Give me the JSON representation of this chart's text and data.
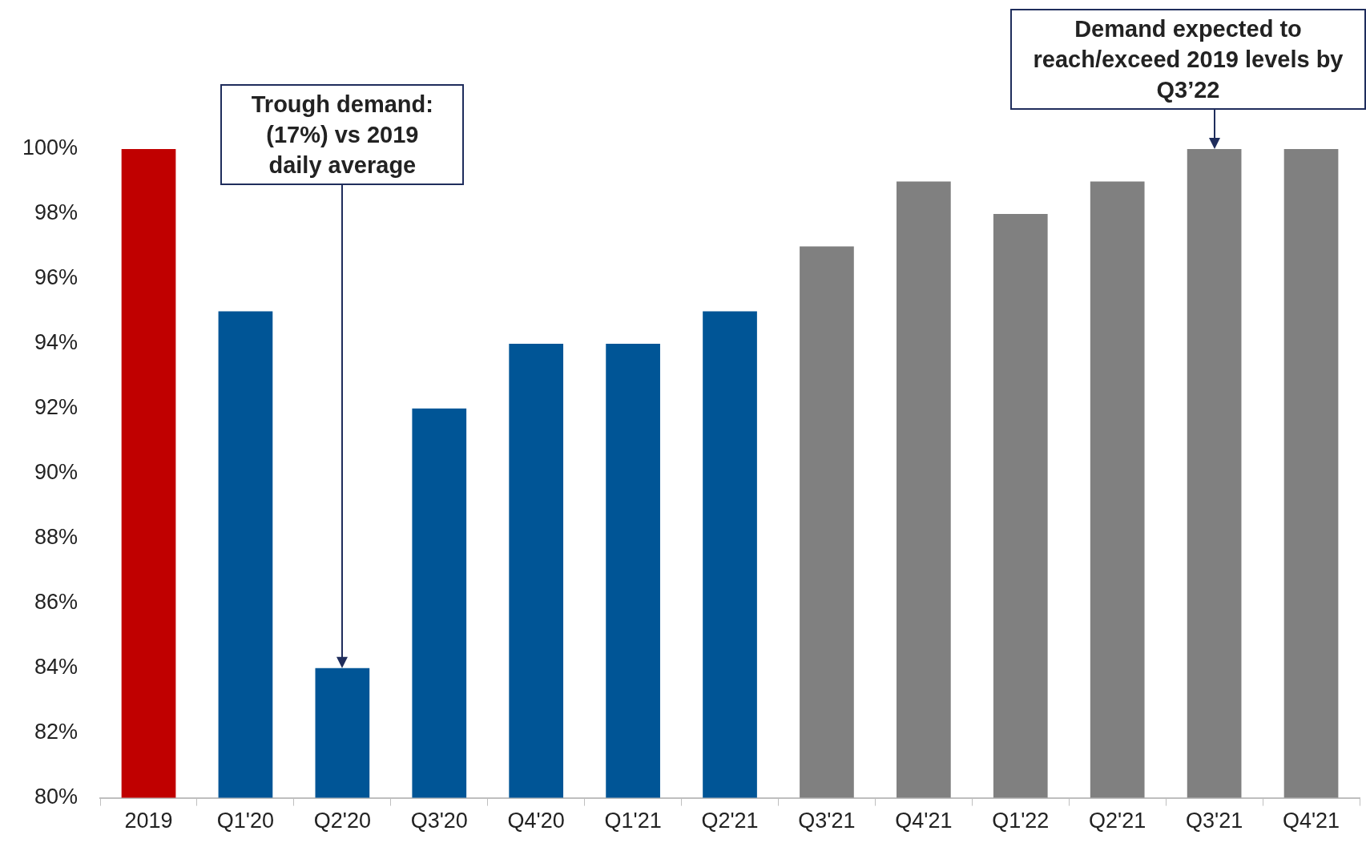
{
  "chart_data": {
    "type": "bar",
    "categories": [
      "2019",
      "Q1'20",
      "Q2'20",
      "Q3'20",
      "Q4'20",
      "Q1'21",
      "Q2'21",
      "Q3'21",
      "Q4'21",
      "Q1'22",
      "Q2'21",
      "Q3'21",
      "Q4'21"
    ],
    "values": [
      100,
      95,
      84,
      92,
      94,
      94,
      95,
      97,
      99,
      98,
      99,
      100,
      100
    ],
    "colors": [
      "#c00000",
      "#005596",
      "#005596",
      "#005596",
      "#005596",
      "#005596",
      "#005596",
      "#808080",
      "#808080",
      "#808080",
      "#808080",
      "#808080",
      "#808080"
    ],
    "ylim": [
      80,
      100
    ],
    "yticks": [
      {
        "value": 80,
        "label": "80%"
      },
      {
        "value": 82,
        "label": "82%"
      },
      {
        "value": 84,
        "label": "84%"
      },
      {
        "value": 86,
        "label": "86%"
      },
      {
        "value": 88,
        "label": "88%"
      },
      {
        "value": 90,
        "label": "90%"
      },
      {
        "value": 92,
        "label": "92%"
      },
      {
        "value": 94,
        "label": "94%"
      },
      {
        "value": 96,
        "label": "96%"
      },
      {
        "value": 98,
        "label": "98%"
      },
      {
        "value": 100,
        "label": "100%"
      }
    ],
    "grid": false,
    "legend": false,
    "annotations": [
      "Trough demand: (17%) vs 2019 daily average",
      "Demand expected to reach/exceed 2019 levels by Q3’22"
    ]
  }
}
